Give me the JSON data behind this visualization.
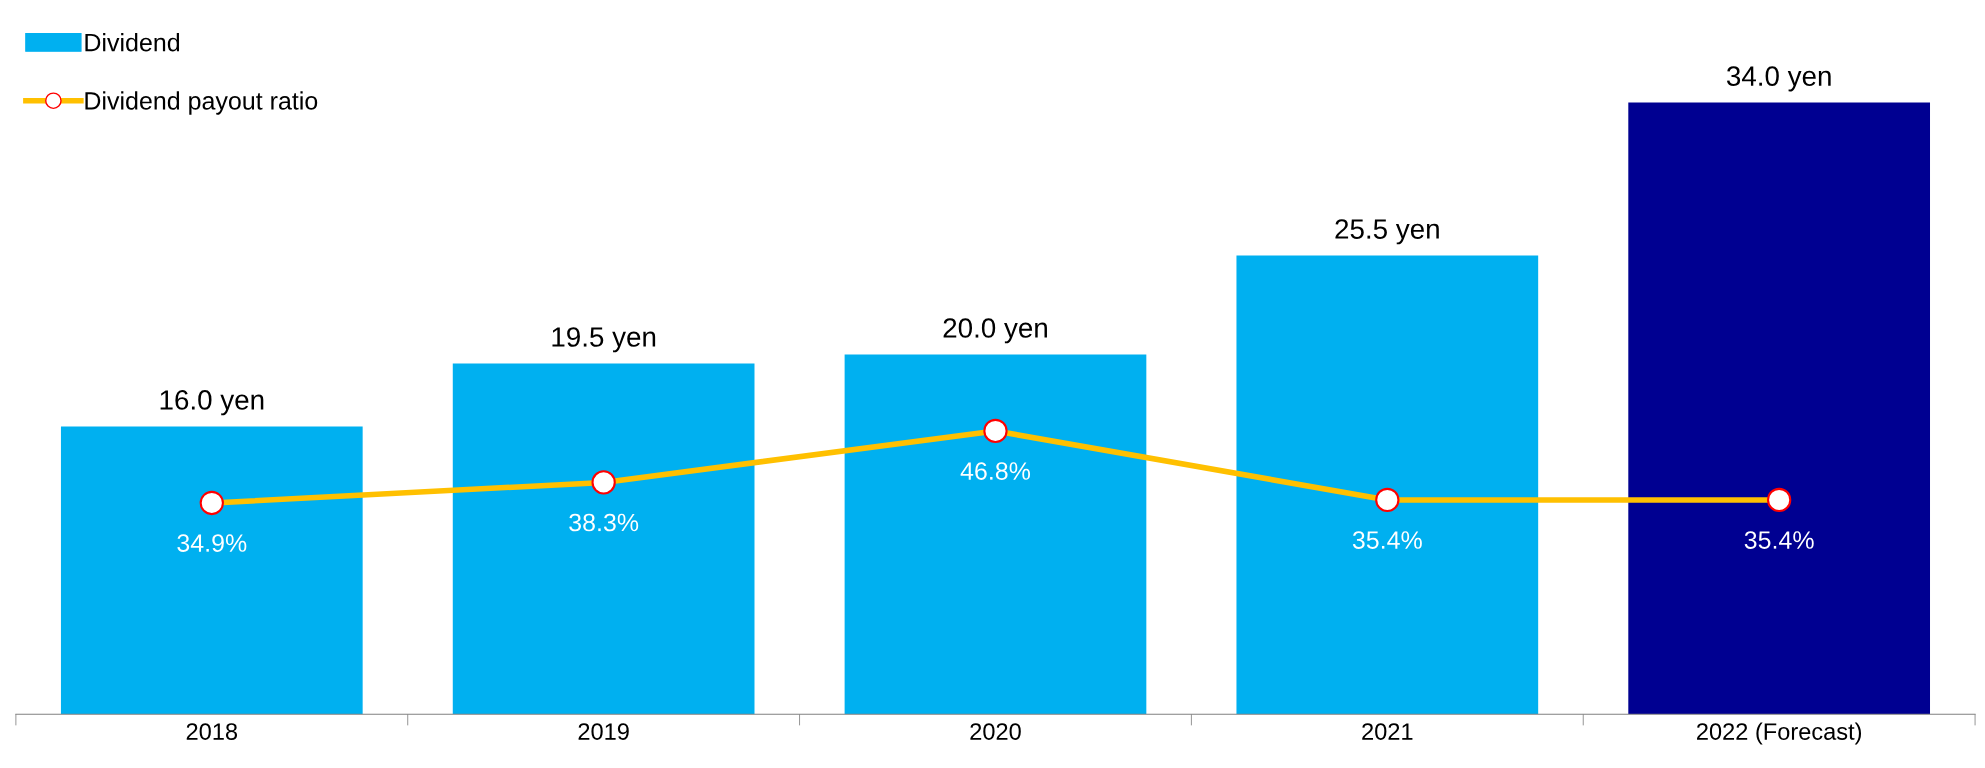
{
  "chart_data": {
    "type": "bar",
    "categories": [
      "2018",
      "2019",
      "2020",
      "2021",
      "2022 (Forecast)"
    ],
    "series": [
      {
        "name": "Dividend",
        "color": "#00b0f0",
        "colors": [
          "#00b0f0",
          "#00b0f0",
          "#00b0f0",
          "#00b0f0",
          "#000091"
        ],
        "values": [
          16.0,
          19.5,
          20.0,
          25.5,
          34.0
        ],
        "value_labels": [
          "16.0 yen",
          "19.5 yen",
          "20.0 yen",
          "25.5 yen",
          "34.0 yen"
        ]
      },
      {
        "name": "Dividend payout ratio",
        "type": "line",
        "axis": "y2",
        "color": "#ffc000",
        "values": [
          34.9,
          38.3,
          46.8,
          35.4,
          35.4
        ],
        "value_labels": [
          "34.9%",
          "38.3%",
          "46.8%",
          "35.4%",
          "35.4%"
        ]
      }
    ],
    "tick_labels": "x",
    "marker": "circle",
    "legend": "top left",
    "grid": false
  }
}
